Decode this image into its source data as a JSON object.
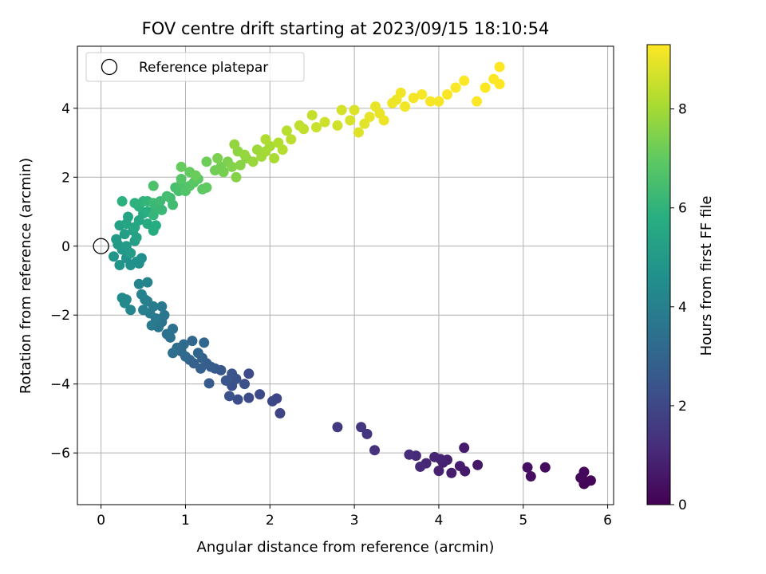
{
  "chart_data": {
    "type": "scatter",
    "title": "FOV centre drift starting at 2023/09/15 18:10:54",
    "xlabel": "Angular distance from reference (arcmin)",
    "ylabel": "Rotation from reference (arcmin)",
    "xlim": [
      -0.28,
      6.07
    ],
    "ylim": [
      -7.5,
      5.8
    ],
    "x_ticks": [
      0,
      1,
      2,
      3,
      4,
      5,
      6
    ],
    "y_ticks": [
      -6,
      -4,
      -2,
      0,
      2,
      4
    ],
    "grid": true,
    "legend": {
      "placement": "top-left",
      "entries": [
        "Reference platepar"
      ]
    },
    "reference_point": {
      "x": 0,
      "y": 0
    },
    "colorbar": {
      "label": "Hours from first FF file",
      "range": [
        0,
        9.3
      ],
      "ticks": [
        0,
        2,
        4,
        6,
        8
      ],
      "colormap": "viridis"
    },
    "series": [
      {
        "points": [
          [
            5.72,
            -6.9,
            0.05
          ],
          [
            5.74,
            -6.85,
            0.08
          ],
          [
            5.7,
            -6.75,
            0.1
          ],
          [
            5.8,
            -6.8,
            0.12
          ],
          [
            5.72,
            -6.55,
            0.15
          ],
          [
            5.68,
            -6.72,
            0.18
          ],
          [
            5.26,
            -6.42,
            0.3
          ],
          [
            5.09,
            -6.68,
            0.35
          ],
          [
            5.05,
            -6.42,
            0.4
          ],
          [
            4.46,
            -6.35,
            0.6
          ],
          [
            4.31,
            -6.53,
            0.65
          ],
          [
            4.3,
            -5.85,
            0.7
          ],
          [
            4.25,
            -6.38,
            0.72
          ],
          [
            4.15,
            -6.58,
            0.75
          ],
          [
            4.1,
            -6.2,
            0.8
          ],
          [
            4.05,
            -6.28,
            0.83
          ],
          [
            4.0,
            -6.52,
            0.87
          ],
          [
            4.02,
            -6.18,
            0.9
          ],
          [
            3.95,
            -6.12,
            0.95
          ],
          [
            3.85,
            -6.3,
            1.0
          ],
          [
            3.78,
            -6.4,
            1.05
          ],
          [
            3.73,
            -6.08,
            1.1
          ],
          [
            3.65,
            -6.05,
            1.15
          ],
          [
            3.24,
            -5.92,
            1.3
          ],
          [
            3.15,
            -5.45,
            1.4
          ],
          [
            3.08,
            -5.25,
            1.45
          ],
          [
            2.8,
            -5.25,
            1.55
          ],
          [
            2.12,
            -4.85,
            1.9
          ],
          [
            2.08,
            -4.42,
            1.95
          ],
          [
            2.03,
            -4.5,
            2.0
          ],
          [
            1.88,
            -4.3,
            2.05
          ],
          [
            1.75,
            -4.4,
            2.1
          ],
          [
            1.75,
            -3.7,
            2.15
          ],
          [
            1.62,
            -4.45,
            2.2
          ],
          [
            1.7,
            -4.0,
            2.25
          ],
          [
            1.55,
            -4.05,
            2.3
          ],
          [
            1.52,
            -4.35,
            2.35
          ],
          [
            1.6,
            -3.85,
            2.4
          ],
          [
            1.55,
            -3.7,
            2.45
          ],
          [
            1.48,
            -3.9,
            2.5
          ],
          [
            1.42,
            -3.6,
            2.55
          ],
          [
            1.35,
            -3.55,
            2.6
          ],
          [
            1.28,
            -3.98,
            2.65
          ],
          [
            1.3,
            -3.5,
            2.7
          ],
          [
            1.25,
            -3.4,
            2.75
          ],
          [
            1.18,
            -3.55,
            2.8
          ],
          [
            1.2,
            -3.25,
            2.85
          ],
          [
            1.1,
            -3.4,
            2.9
          ],
          [
            1.05,
            -3.3,
            2.95
          ],
          [
            1.15,
            -3.1,
            3.0
          ],
          [
            1.22,
            -2.8,
            3.05
          ],
          [
            1.08,
            -2.75,
            3.1
          ],
          [
            1.0,
            -3.2,
            3.15
          ],
          [
            0.95,
            -3.05,
            3.2
          ],
          [
            0.98,
            -2.85,
            3.25
          ],
          [
            0.9,
            -2.95,
            3.3
          ],
          [
            0.85,
            -3.1,
            3.35
          ],
          [
            0.82,
            -2.65,
            3.4
          ],
          [
            0.85,
            -2.4,
            3.45
          ],
          [
            0.78,
            -2.55,
            3.5
          ],
          [
            0.72,
            -2.2,
            3.55
          ],
          [
            0.75,
            -2.0,
            3.6
          ],
          [
            0.68,
            -2.35,
            3.65
          ],
          [
            0.72,
            -1.75,
            3.7
          ],
          [
            0.65,
            -2.1,
            3.75
          ],
          [
            0.6,
            -2.3,
            3.8
          ],
          [
            0.58,
            -1.95,
            3.85
          ],
          [
            0.62,
            -1.75,
            3.9
          ],
          [
            0.55,
            -1.6,
            3.95
          ],
          [
            0.5,
            -1.85,
            4.0
          ],
          [
            0.52,
            -1.55,
            4.05
          ],
          [
            0.48,
            -1.4,
            4.1
          ],
          [
            0.55,
            -1.05,
            4.15
          ],
          [
            0.45,
            -1.1,
            4.2
          ],
          [
            0.35,
            -1.85,
            4.25
          ],
          [
            0.3,
            -1.55,
            4.3
          ],
          [
            0.28,
            -1.65,
            4.35
          ],
          [
            0.25,
            -1.5,
            4.4
          ],
          [
            0.45,
            -0.5,
            4.55
          ],
          [
            0.48,
            -0.35,
            4.6
          ],
          [
            0.42,
            -0.45,
            4.65
          ],
          [
            0.35,
            -0.55,
            4.7
          ],
          [
            0.3,
            -0.35,
            4.75
          ],
          [
            0.22,
            -0.55,
            4.8
          ],
          [
            0.15,
            -0.3,
            4.85
          ],
          [
            0.25,
            -0.1,
            4.9
          ],
          [
            0.2,
            0.05,
            4.95
          ],
          [
            0.18,
            0.2,
            5.0
          ],
          [
            0.3,
            0.0,
            5.05
          ],
          [
            0.35,
            -0.2,
            5.1
          ],
          [
            0.4,
            0.15,
            5.15
          ],
          [
            0.28,
            0.35,
            5.2
          ],
          [
            0.38,
            0.45,
            5.25
          ],
          [
            0.42,
            0.25,
            5.3
          ],
          [
            0.22,
            0.6,
            5.35
          ],
          [
            0.3,
            0.65,
            5.4
          ],
          [
            0.32,
            0.85,
            5.45
          ],
          [
            0.4,
            0.55,
            5.5
          ],
          [
            0.45,
            0.75,
            5.55
          ],
          [
            0.55,
            0.65,
            5.6
          ],
          [
            0.5,
            0.95,
            5.65
          ],
          [
            0.62,
            0.45,
            5.7
          ],
          [
            0.65,
            0.6,
            5.75
          ],
          [
            0.55,
            1.0,
            5.8
          ],
          [
            0.45,
            1.15,
            5.85
          ],
          [
            0.25,
            1.3,
            5.9
          ],
          [
            0.4,
            1.25,
            5.95
          ],
          [
            0.5,
            1.3,
            6.0
          ],
          [
            0.55,
            1.3,
            6.05
          ],
          [
            0.62,
            0.9,
            6.1
          ],
          [
            0.65,
            1.1,
            6.15
          ],
          [
            0.72,
            1.05,
            6.2
          ],
          [
            0.62,
            1.25,
            6.25
          ],
          [
            0.7,
            1.3,
            6.3
          ],
          [
            0.82,
            1.4,
            6.35
          ],
          [
            0.85,
            1.2,
            6.4
          ],
          [
            0.78,
            1.45,
            6.45
          ],
          [
            0.92,
            1.6,
            6.5
          ],
          [
            0.88,
            1.7,
            6.55
          ],
          [
            0.62,
            1.75,
            6.6
          ],
          [
            0.95,
            1.8,
            6.65
          ],
          [
            1.0,
            1.6,
            6.7
          ],
          [
            1.05,
            1.75,
            6.75
          ],
          [
            0.95,
            1.95,
            6.8
          ],
          [
            1.1,
            1.85,
            6.85
          ],
          [
            1.15,
            1.95,
            6.9
          ],
          [
            1.2,
            1.65,
            6.95
          ],
          [
            1.25,
            1.7,
            7.0
          ],
          [
            1.05,
            2.15,
            7.05
          ],
          [
            0.95,
            2.3,
            7.1
          ],
          [
            1.12,
            2.05,
            7.15
          ],
          [
            1.25,
            2.45,
            7.2
          ],
          [
            1.35,
            2.2,
            7.25
          ],
          [
            1.42,
            2.3,
            7.3
          ],
          [
            1.45,
            2.15,
            7.35
          ],
          [
            1.38,
            2.55,
            7.4
          ],
          [
            1.5,
            2.45,
            7.45
          ],
          [
            1.55,
            2.3,
            7.5
          ],
          [
            1.6,
            2.0,
            7.55
          ],
          [
            1.65,
            2.35,
            7.6
          ],
          [
            1.72,
            2.55,
            7.65
          ],
          [
            1.62,
            2.75,
            7.7
          ],
          [
            1.58,
            2.95,
            7.75
          ],
          [
            1.7,
            2.65,
            7.8
          ],
          [
            1.8,
            2.45,
            7.85
          ],
          [
            1.85,
            2.8,
            7.9
          ],
          [
            1.9,
            2.6,
            7.95
          ],
          [
            1.95,
            2.75,
            8.0
          ],
          [
            2.0,
            2.9,
            8.05
          ],
          [
            2.05,
            2.55,
            8.1
          ],
          [
            1.95,
            3.1,
            8.15
          ],
          [
            2.1,
            3.0,
            8.2
          ],
          [
            2.15,
            2.8,
            8.25
          ],
          [
            2.2,
            3.35,
            8.3
          ],
          [
            2.25,
            3.1,
            8.35
          ],
          [
            2.35,
            3.5,
            8.4
          ],
          [
            2.4,
            3.4,
            8.45
          ],
          [
            2.5,
            3.8,
            8.5
          ],
          [
            2.55,
            3.45,
            8.55
          ],
          [
            2.65,
            3.6,
            8.6
          ],
          [
            2.8,
            3.5,
            8.65
          ],
          [
            2.85,
            3.95,
            8.7
          ],
          [
            2.95,
            3.65,
            8.75
          ],
          [
            3.0,
            3.95,
            8.8
          ],
          [
            3.05,
            3.3,
            8.85
          ],
          [
            3.12,
            3.55,
            8.9
          ],
          [
            3.18,
            3.75,
            8.95
          ],
          [
            3.25,
            4.05,
            9.0
          ],
          [
            3.3,
            3.85,
            9.02
          ],
          [
            3.35,
            3.65,
            9.05
          ],
          [
            3.45,
            4.15,
            9.08
          ],
          [
            3.5,
            4.25,
            9.1
          ],
          [
            3.55,
            4.45,
            9.12
          ],
          [
            3.6,
            4.05,
            9.15
          ],
          [
            3.7,
            4.3,
            9.17
          ],
          [
            3.8,
            4.4,
            9.19
          ],
          [
            3.9,
            4.2,
            9.2
          ],
          [
            4.0,
            4.2,
            9.22
          ],
          [
            4.1,
            4.4,
            9.24
          ],
          [
            4.2,
            4.6,
            9.25
          ],
          [
            4.3,
            4.8,
            9.26
          ],
          [
            4.45,
            4.2,
            9.27
          ],
          [
            4.55,
            4.6,
            9.28
          ],
          [
            4.65,
            4.85,
            9.29
          ],
          [
            4.72,
            4.7,
            9.3
          ],
          [
            4.72,
            5.2,
            9.3
          ]
        ]
      }
    ]
  }
}
